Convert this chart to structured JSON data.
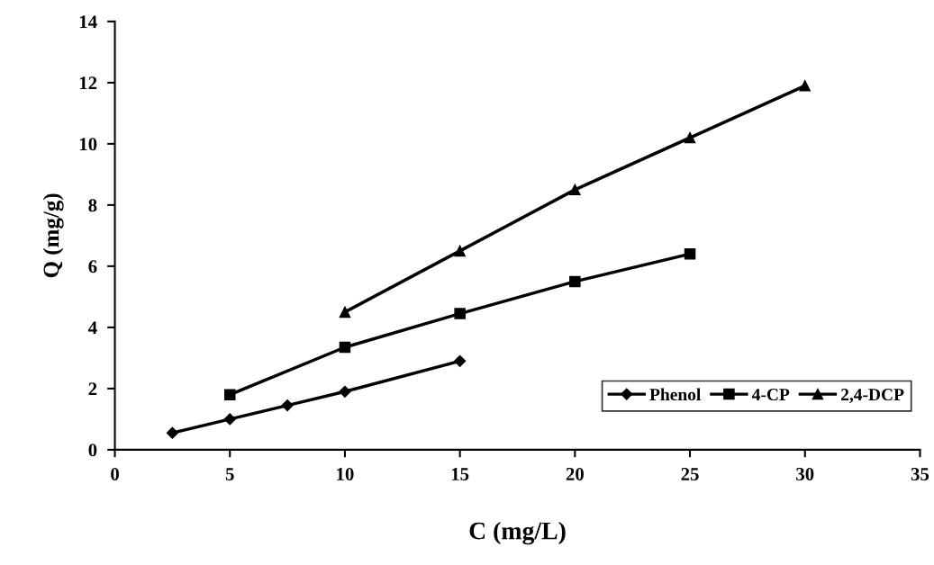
{
  "chart_data": {
    "type": "line",
    "xlabel": "C (mg/L)",
    "ylabel": "Q (mg/g)",
    "xlim": [
      0,
      35
    ],
    "xticks": [
      0,
      5,
      10,
      15,
      20,
      25,
      30,
      35
    ],
    "ylim": [
      0,
      14
    ],
    "yticks": [
      0,
      2,
      4,
      6,
      8,
      10,
      12,
      14
    ],
    "grid": false,
    "legend": "bottom right",
    "line_style": "solid",
    "series": [
      {
        "name": "Phenol",
        "color": "#000000",
        "marker": "diamond",
        "x": [
          2.5,
          5,
          7.5,
          10,
          15
        ],
        "values": [
          0.55,
          1.0,
          1.45,
          1.9,
          2.9
        ]
      },
      {
        "name": "4-CP",
        "color": "#000000",
        "marker": "square",
        "x": [
          5,
          10,
          15,
          20,
          25
        ],
        "values": [
          1.8,
          3.35,
          4.45,
          5.5,
          6.4
        ]
      },
      {
        "name": "2,4-DCP",
        "color": "#000000",
        "marker": "triangle",
        "x": [
          10,
          15,
          20,
          25,
          30
        ],
        "values": [
          4.5,
          6.5,
          8.5,
          10.2,
          11.9
        ]
      }
    ]
  }
}
